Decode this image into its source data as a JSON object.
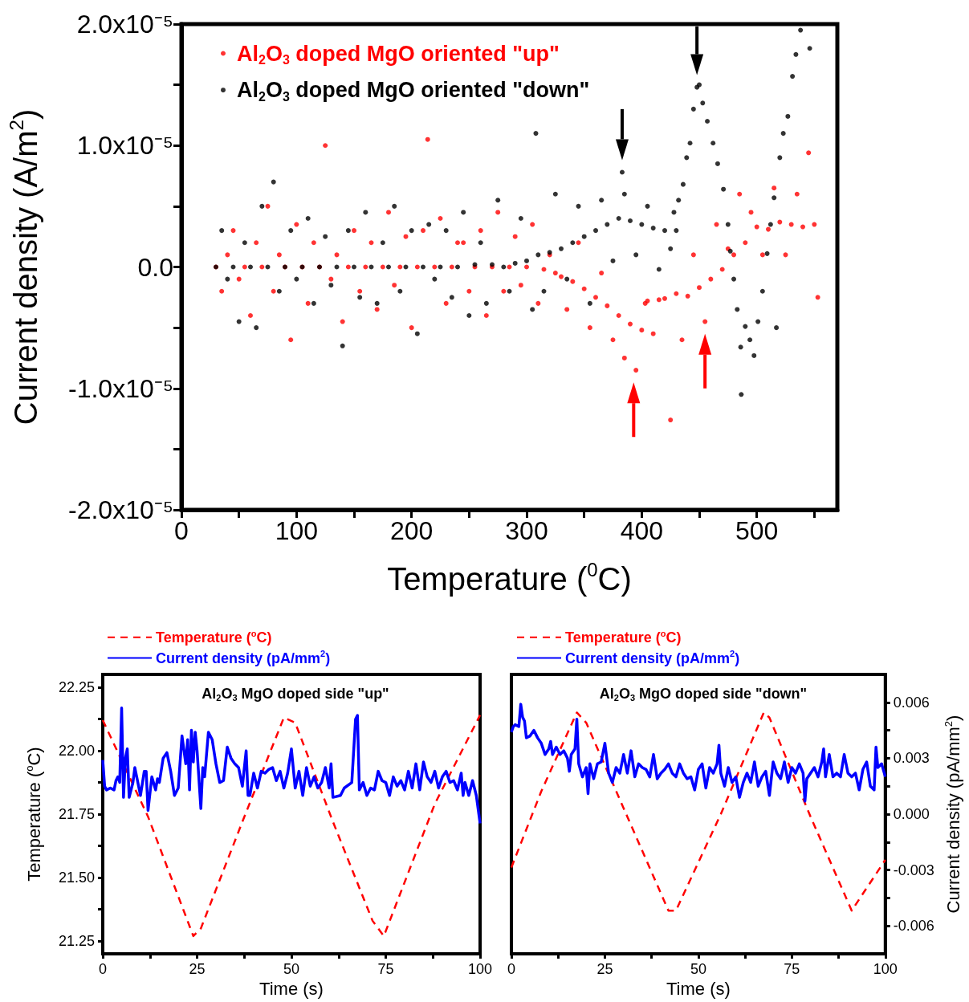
{
  "chart_data": [
    {
      "type": "scatter",
      "ylabel": "Current density (A/m$^{2}$)",
      "xlabel": "Temperature ($^{0}$C)",
      "marker": "circle",
      "legend": "top left",
      "xlim": [
        0,
        570
      ],
      "xticks": [
        0,
        {
          "value": 50,
          "label": null
        },
        100,
        {
          "value": 150,
          "label": null
        },
        200,
        {
          "value": 250,
          "label": null
        },
        300,
        {
          "value": 350,
          "label": null
        },
        400,
        {
          "value": 450,
          "label": null
        },
        500,
        {
          "value": 550,
          "label": null
        }
      ],
      "ylim": [
        -2e-05,
        2e-05
      ],
      "yticks": [
        {
          "value": -2e-05,
          "label": "-2.0x10⁻⁵"
        },
        {
          "value": -1.5e-05,
          "label": null
        },
        {
          "value": -1e-05,
          "label": "-1.0x10⁻⁵"
        },
        {
          "value": -5e-06,
          "label": null
        },
        {
          "value": 0,
          "label": "0.0"
        },
        {
          "value": 5e-06,
          "label": null
        },
        {
          "value": 1e-05,
          "label": "1.0x10⁻⁵"
        },
        {
          "value": 1.5e-05,
          "label": null
        },
        {
          "value": 2e-05,
          "label": "2.0x10⁻⁵"
        }
      ],
      "series": [
        {
          "name": "Al$_{2}$O$_{3}$ doped MgO oriented \"up\"",
          "color": "#ff0000",
          "x": [
            30,
            35,
            40,
            45,
            50,
            55,
            60,
            65,
            70,
            75,
            80,
            85,
            90,
            95,
            100,
            105,
            110,
            115,
            120,
            125,
            130,
            135,
            140,
            145,
            150,
            155,
            160,
            165,
            170,
            175,
            180,
            185,
            190,
            195,
            200,
            205,
            210,
            214,
            220,
            225,
            230,
            235,
            240,
            245,
            250,
            255,
            260,
            265,
            270,
            275,
            280,
            285,
            290,
            295,
            300,
            305,
            310,
            315,
            320,
            325,
            330,
            335,
            340,
            345,
            350,
            355,
            360,
            365,
            370,
            375,
            380,
            385,
            390,
            395,
            400,
            403,
            405,
            410,
            415,
            420,
            425,
            430,
            435,
            440,
            445,
            450,
            455,
            460,
            465,
            470,
            475,
            480,
            485,
            490,
            495,
            500,
            505,
            510,
            515,
            520,
            525,
            530,
            535,
            540,
            545,
            550,
            553
          ],
          "values": [
            0,
            -2e-06,
            1e-06,
            3e-06,
            -1e-06,
            0,
            -4e-06,
            2e-06,
            0,
            5e-06,
            -2e-06,
            1e-06,
            0,
            -6e-06,
            3.5e-06,
            0,
            -3e-06,
            2e-06,
            0,
            1e-05,
            -1e-06,
            1e-06,
            -4.5e-06,
            0,
            3e-06,
            -2e-06,
            0,
            2e-06,
            -3.5e-06,
            0,
            4.5e-06,
            -1.5e-06,
            0,
            2.5e-06,
            -5e-06,
            0,
            3e-06,
            1.05e-05,
            0,
            4e-06,
            -3e-06,
            0,
            2e-06,
            2e-06,
            -2e-06,
            0,
            3e-06,
            -4e-06,
            0,
            4.5e-06,
            -2e-06,
            0,
            2.5e-06,
            -1.5e-06,
            0,
            3.5e-06,
            -3e-06,
            -2e-07,
            1e-06,
            -5e-07,
            -8e-07,
            -3.5e-06,
            -1.2e-06,
            2e-06,
            -1.8e-06,
            -5e-06,
            -2.5e-06,
            -5e-07,
            -3.2e-06,
            -6e-06,
            -4e-06,
            -7.5e-06,
            -4.7e-06,
            -8.5e-06,
            -5.2e-06,
            -3e-06,
            -2.8e-06,
            -5.5e-06,
            -2.7e-06,
            -2.6e-06,
            -1.26e-05,
            -2.2e-06,
            -6e-06,
            -2.4e-06,
            1e-06,
            -1.7e-06,
            -4.5e-06,
            -1e-06,
            3.5e-06,
            -2e-07,
            1.5e-06,
            1e-06,
            6e-06,
            2e-06,
            4.5e-06,
            3.3e-06,
            1e-06,
            3.1e-06,
            6.5e-06,
            3.7e-06,
            1e-06,
            3.5e-06,
            6e-06,
            3.3e-06,
            9.4e-06,
            3.5e-06,
            -2.5e-06
          ]
        },
        {
          "name": "Al$_{2}$O$_{3}$ doped MgO oriented \"down\"",
          "color": "#000000",
          "x": [
            30,
            35,
            40,
            45,
            50,
            55,
            60,
            65,
            70,
            75,
            80,
            85,
            90,
            95,
            100,
            105,
            110,
            115,
            120,
            125,
            130,
            135,
            140,
            145,
            150,
            155,
            160,
            165,
            170,
            175,
            180,
            185,
            190,
            195,
            200,
            205,
            210,
            215,
            220,
            225,
            230,
            235,
            240,
            245,
            250,
            255,
            260,
            265,
            270,
            275,
            280,
            285,
            290,
            295,
            300,
            305,
            308,
            310,
            315,
            320,
            325,
            330,
            335,
            340,
            345,
            350,
            355,
            360,
            365,
            370,
            375,
            380,
            383,
            385,
            390,
            395,
            400,
            405,
            410,
            415,
            420,
            425,
            428,
            430,
            432,
            436,
            439,
            442,
            445,
            448,
            450,
            453,
            457,
            462,
            466,
            471,
            475,
            477,
            480,
            483,
            486,
            486.5,
            490,
            494,
            497.6,
            501,
            505,
            509,
            512,
            515,
            517,
            520,
            523,
            527,
            531,
            534,
            538,
            546
          ],
          "values": [
            0,
            3e-06,
            -1e-06,
            0,
            -4.5e-06,
            2e-06,
            0,
            -5e-06,
            5e-06,
            0,
            7e-06,
            -2e-06,
            0,
            3e-06,
            -1e-06,
            0,
            4e-06,
            -3e-06,
            0,
            2.5e-06,
            -1.5e-06,
            0,
            -6.5e-06,
            3e-06,
            0,
            -2.5e-06,
            4.5e-06,
            0,
            -3e-06,
            2e-06,
            0,
            5e-06,
            -2e-06,
            0,
            3e-06,
            -5.5e-06,
            0,
            3.5e-06,
            -1e-06,
            0,
            3e-06,
            -2.5e-06,
            0,
            4.5e-06,
            -4e-06,
            2e-07,
            2e-06,
            -3e-06,
            2e-07,
            5.5e-06,
            0,
            -2e-06,
            3e-07,
            4e-06,
            5e-07,
            -3.5e-06,
            1.1e-05,
            1e-06,
            -2e-06,
            1.2e-06,
            6e-06,
            1.5e-06,
            -1e-06,
            2e-06,
            5e-06,
            2.5e-06,
            -3e-06,
            3e-06,
            5.5e-06,
            3.5e-06,
            5e-07,
            4e-06,
            7.8e-06,
            6e-06,
            3.8e-06,
            1e-06,
            3.5e-06,
            5e-06,
            3.2e-06,
            -2e-07,
            3e-06,
            1.5e-06,
            4.5e-06,
            3e-06,
            5.5e-06,
            6.8e-06,
            9e-06,
            1.02e-05,
            1.3e-05,
            1.48e-05,
            1.5e-05,
            1.35e-05,
            1.2e-05,
            1.02e-05,
            8.5e-06,
            6.4e-06,
            3.5e-06,
            1.3e-06,
            -1e-06,
            -3.5e-06,
            -6.6e-06,
            -1.05e-05,
            -4.9e-06,
            -6e-06,
            -7.3e-06,
            -4.5e-06,
            -2e-06,
            1.1e-06,
            3.5e-06,
            5.7e-06,
            -5e-06,
            9e-06,
            1.1e-05,
            1.24e-05,
            1.57e-05,
            1.75e-05,
            1.95e-05,
            1.8e-05
          ]
        }
      ]
    },
    {
      "type": "line",
      "title": "Al$_{2}$O$_{3}$ MgO doped side \"up\"",
      "xlabel": "Time (s)",
      "ylabel": "Temperature ($^{o}$C)",
      "legend": "top left",
      "tick_labels": "xy",
      "xlim": [
        0,
        100
      ],
      "xticks": [
        0,
        {
          "value": 12.5,
          "label": null
        },
        25,
        {
          "value": 37.5,
          "label": null
        },
        50,
        {
          "value": 62.5,
          "label": null
        },
        75,
        {
          "value": 87.5,
          "label": null
        },
        100
      ],
      "ylim": [
        21.2,
        22.3
      ],
      "yticks": [
        {
          "value": 21.25,
          "label": "21.25"
        },
        {
          "value": 21.375,
          "label": null
        },
        {
          "value": 21.5,
          "label": "21.50"
        },
        {
          "value": 21.625,
          "label": null
        },
        {
          "value": 21.75,
          "label": "21.75"
        },
        {
          "value": 21.875,
          "label": null
        },
        {
          "value": 22,
          "label": "22.00"
        },
        {
          "value": 22.125,
          "label": null
        },
        {
          "value": 22.25,
          "label": "22.25"
        }
      ],
      "y2lim": [
        -0.0075,
        0.0075
      ],
      "series": [
        {
          "name": "Temperature ($^{o}$C)",
          "color": "#ff0000",
          "line_style": "dashed",
          "x": [
            0,
            12,
            24,
            26,
            37,
            48,
            51,
            61,
            71.5,
            74.5,
            88,
            100
          ],
          "values": [
            22.12,
            21.74,
            21.27,
            21.3,
            21.72,
            22.13,
            22.11,
            21.72,
            21.33,
            21.27,
            21.79,
            22.14
          ]
        },
        {
          "name": "Current density (pA/mm$^{2}$)",
          "color": "#0000ff",
          "line_style": "solid",
          "axis": "y2",
          "x": [
            0,
            0.5,
            1,
            2,
            3,
            3.5,
            4,
            4.5,
            5,
            5.5,
            6,
            6.5,
            7,
            8,
            8.5,
            9,
            10,
            11,
            11.5,
            12,
            13,
            14,
            14.5,
            15,
            16,
            17,
            18,
            19,
            20,
            21,
            22,
            22.5,
            23,
            23.5,
            24,
            24.5,
            25,
            26,
            26.5,
            27,
            28,
            29,
            30,
            31,
            32,
            33,
            34,
            35,
            36,
            37,
            38,
            38.5,
            39,
            40,
            41,
            42,
            43,
            44,
            45,
            46,
            47,
            48,
            49,
            50,
            51,
            52,
            53,
            54,
            55,
            56,
            57,
            58,
            59,
            60,
            60.5,
            61,
            63,
            64,
            66,
            67,
            67.5,
            68,
            69,
            70,
            71,
            72,
            73,
            74,
            75,
            76,
            77,
            78,
            79,
            80,
            81,
            82,
            83,
            84,
            85,
            86,
            87,
            88,
            89,
            90,
            91,
            92,
            93,
            94,
            95,
            95.5,
            96,
            97,
            98,
            99,
            100
          ],
          "values": [
            0.0029,
            0.0015,
            0.0013,
            0.0014,
            0.0013,
            0.0018,
            0.002,
            0.0017,
            0.0057,
            0.0009,
            0.003,
            0.0035,
            0.0009,
            0.0017,
            0.0025,
            0.002,
            0.001,
            0.0023,
            0.0023,
            0.0002,
            0.002,
            0.0013,
            0.0019,
            0.0017,
            0.003,
            0.0033,
            0.0023,
            0.001,
            0.0014,
            0.0042,
            0.0027,
            0.004,
            0.0013,
            0.0045,
            0.0028,
            0.0044,
            0.0034,
            0.0003,
            0.0025,
            0.002,
            0.0044,
            0.004,
            0.0027,
            0.0017,
            0.0018,
            0.0036,
            0.003,
            0.0027,
            0.0025,
            0.0015,
            0.0034,
            0.001,
            0.001,
            0.0022,
            0.0014,
            0.0023,
            0.0022,
            0.0024,
            0.0025,
            0.0018,
            0.0023,
            0.0014,
            0.0022,
            0.0035,
            0.0014,
            0.0023,
            0.001,
            0.0025,
            0.0015,
            0.002,
            0.0014,
            0.0017,
            0.0025,
            0.0014,
            0.0027,
            0.0009,
            0.001,
            0.0014,
            0.0017,
            0.0051,
            0.0053,
            0.0013,
            0.0017,
            0.001,
            0.0014,
            0.0013,
            0.0023,
            0.0018,
            0.0017,
            0.001,
            0.002,
            0.0015,
            0.0018,
            0.0013,
            0.0023,
            0.0014,
            0.0027,
            0.0013,
            0.0028,
            0.002,
            0.0017,
            0.0023,
            0.0014,
            0.002,
            0.0023,
            0.0017,
            0.0018,
            0.0013,
            0.0022,
            0.001,
            0.0017,
            0.001,
            0.0018,
            0.001,
            -0.0005
          ]
        }
      ]
    },
    {
      "type": "line",
      "title": "Al$_{2}$O$_{3}$ MgO doped side \"down\"",
      "xlabel": "Time (s)",
      "y2label": "Current density (pA/mm$^{2}$)",
      "legend": "top left",
      "tick_labels": "xy2",
      "xlim": [
        0,
        100
      ],
      "xticks": [
        0,
        {
          "value": 12.5,
          "label": null
        },
        25,
        {
          "value": 37.5,
          "label": null
        },
        50,
        {
          "value": 62.5,
          "label": null
        },
        75,
        {
          "value": 87.5,
          "label": null
        },
        100
      ],
      "ylim": [
        21.2,
        22.3
      ],
      "y2lim": [
        -0.0075,
        0.0075
      ],
      "y2ticks": [
        -0.006,
        {
          "value": -0.0045,
          "label": null
        },
        -0.003,
        {
          "value": -0.0015,
          "label": null
        },
        {
          "value": 0,
          "label": "0.000"
        },
        {
          "value": 0.0015,
          "label": null
        },
        0.003,
        {
          "value": 0.0045,
          "label": null
        },
        0.006
      ],
      "series": [
        {
          "name": "Temperature ($^{o}$C)",
          "color": "#ff0000",
          "line_style": "dashed",
          "x": [
            0,
            8,
            17.5,
            20,
            31,
            42,
            44,
            56,
            67.5,
            69,
            80,
            91,
            100
          ],
          "values": [
            21.54,
            21.84,
            22.15,
            22.11,
            21.74,
            21.37,
            21.37,
            21.75,
            22.15,
            22.13,
            21.74,
            21.37,
            21.57
          ]
        },
        {
          "name": "Current density (pA/mm$^{2}$)",
          "color": "#0000ff",
          "line_style": "solid",
          "axis": "y2",
          "x": [
            0,
            0.5,
            1,
            2,
            2.5,
            3,
            3.5,
            4,
            5,
            6,
            7,
            8,
            9,
            10,
            10.5,
            11,
            12,
            13,
            14,
            15,
            15.5,
            16,
            17,
            17.5,
            18,
            19,
            20,
            20.5,
            21,
            22,
            23,
            24,
            25,
            26,
            27,
            28,
            29,
            30,
            31,
            32,
            33,
            34,
            35,
            36,
            37,
            38,
            39,
            40,
            41,
            42,
            43,
            44,
            45,
            46,
            47,
            48,
            49,
            50,
            51,
            52,
            53,
            54,
            55,
            55.5,
            56,
            57,
            58,
            59,
            60,
            61,
            62,
            63,
            64,
            65,
            66,
            67,
            68,
            69,
            70,
            71,
            72,
            73,
            74,
            75,
            76,
            77,
            78,
            78.5,
            79,
            80,
            81,
            82,
            83,
            83.5,
            84,
            85,
            86,
            87,
            88,
            89,
            90,
            91,
            92,
            93,
            94,
            95,
            96,
            97,
            97.5,
            98,
            99,
            100
          ],
          "values": [
            0.0044,
            0.0047,
            0.0048,
            0.0047,
            0.0059,
            0.0052,
            0.005,
            0.0041,
            0.0042,
            0.0045,
            0.0041,
            0.0038,
            0.0032,
            0.0035,
            0.0039,
            0.0032,
            0.0036,
            0.0032,
            0.0034,
            0.003,
            0.0023,
            0.0032,
            0.0035,
            0.0051,
            0.0027,
            0.002,
            0.0025,
            0.0011,
            0.0027,
            0.0019,
            0.0027,
            0.0028,
            0.0038,
            0.0022,
            0.0017,
            0.0025,
            0.0022,
            0.0032,
            0.0022,
            0.0034,
            0.002,
            0.0027,
            0.0025,
            0.0024,
            0.002,
            0.0032,
            0.0019,
            0.0022,
            0.0024,
            0.0027,
            0.0022,
            0.002,
            0.0027,
            0.0022,
            0.0019,
            0.002,
            0.0013,
            0.0024,
            0.0027,
            0.0014,
            0.0025,
            0.0022,
            0.0027,
            0.0037,
            0.0022,
            0.0015,
            0.0025,
            0.0017,
            0.002,
            0.0009,
            0.0017,
            0.0022,
            0.0017,
            0.0028,
            0.0015,
            0.002,
            0.0023,
            0.001,
            0.0028,
            0.0022,
            0.0019,
            0.0028,
            0.0017,
            0.0025,
            0.0022,
            0.0027,
            0.0022,
            0.0007,
            0.0019,
            0.0022,
            0.0025,
            0.002,
            0.0028,
            0.0035,
            0.002,
            0.0032,
            0.002,
            0.0022,
            0.002,
            0.0032,
            0.0022,
            0.002,
            0.0022,
            0.0013,
            0.0024,
            0.0028,
            0.0015,
            0.0013,
            0.0036,
            0.0025,
            0.0027,
            0.002
          ]
        }
      ]
    }
  ]
}
